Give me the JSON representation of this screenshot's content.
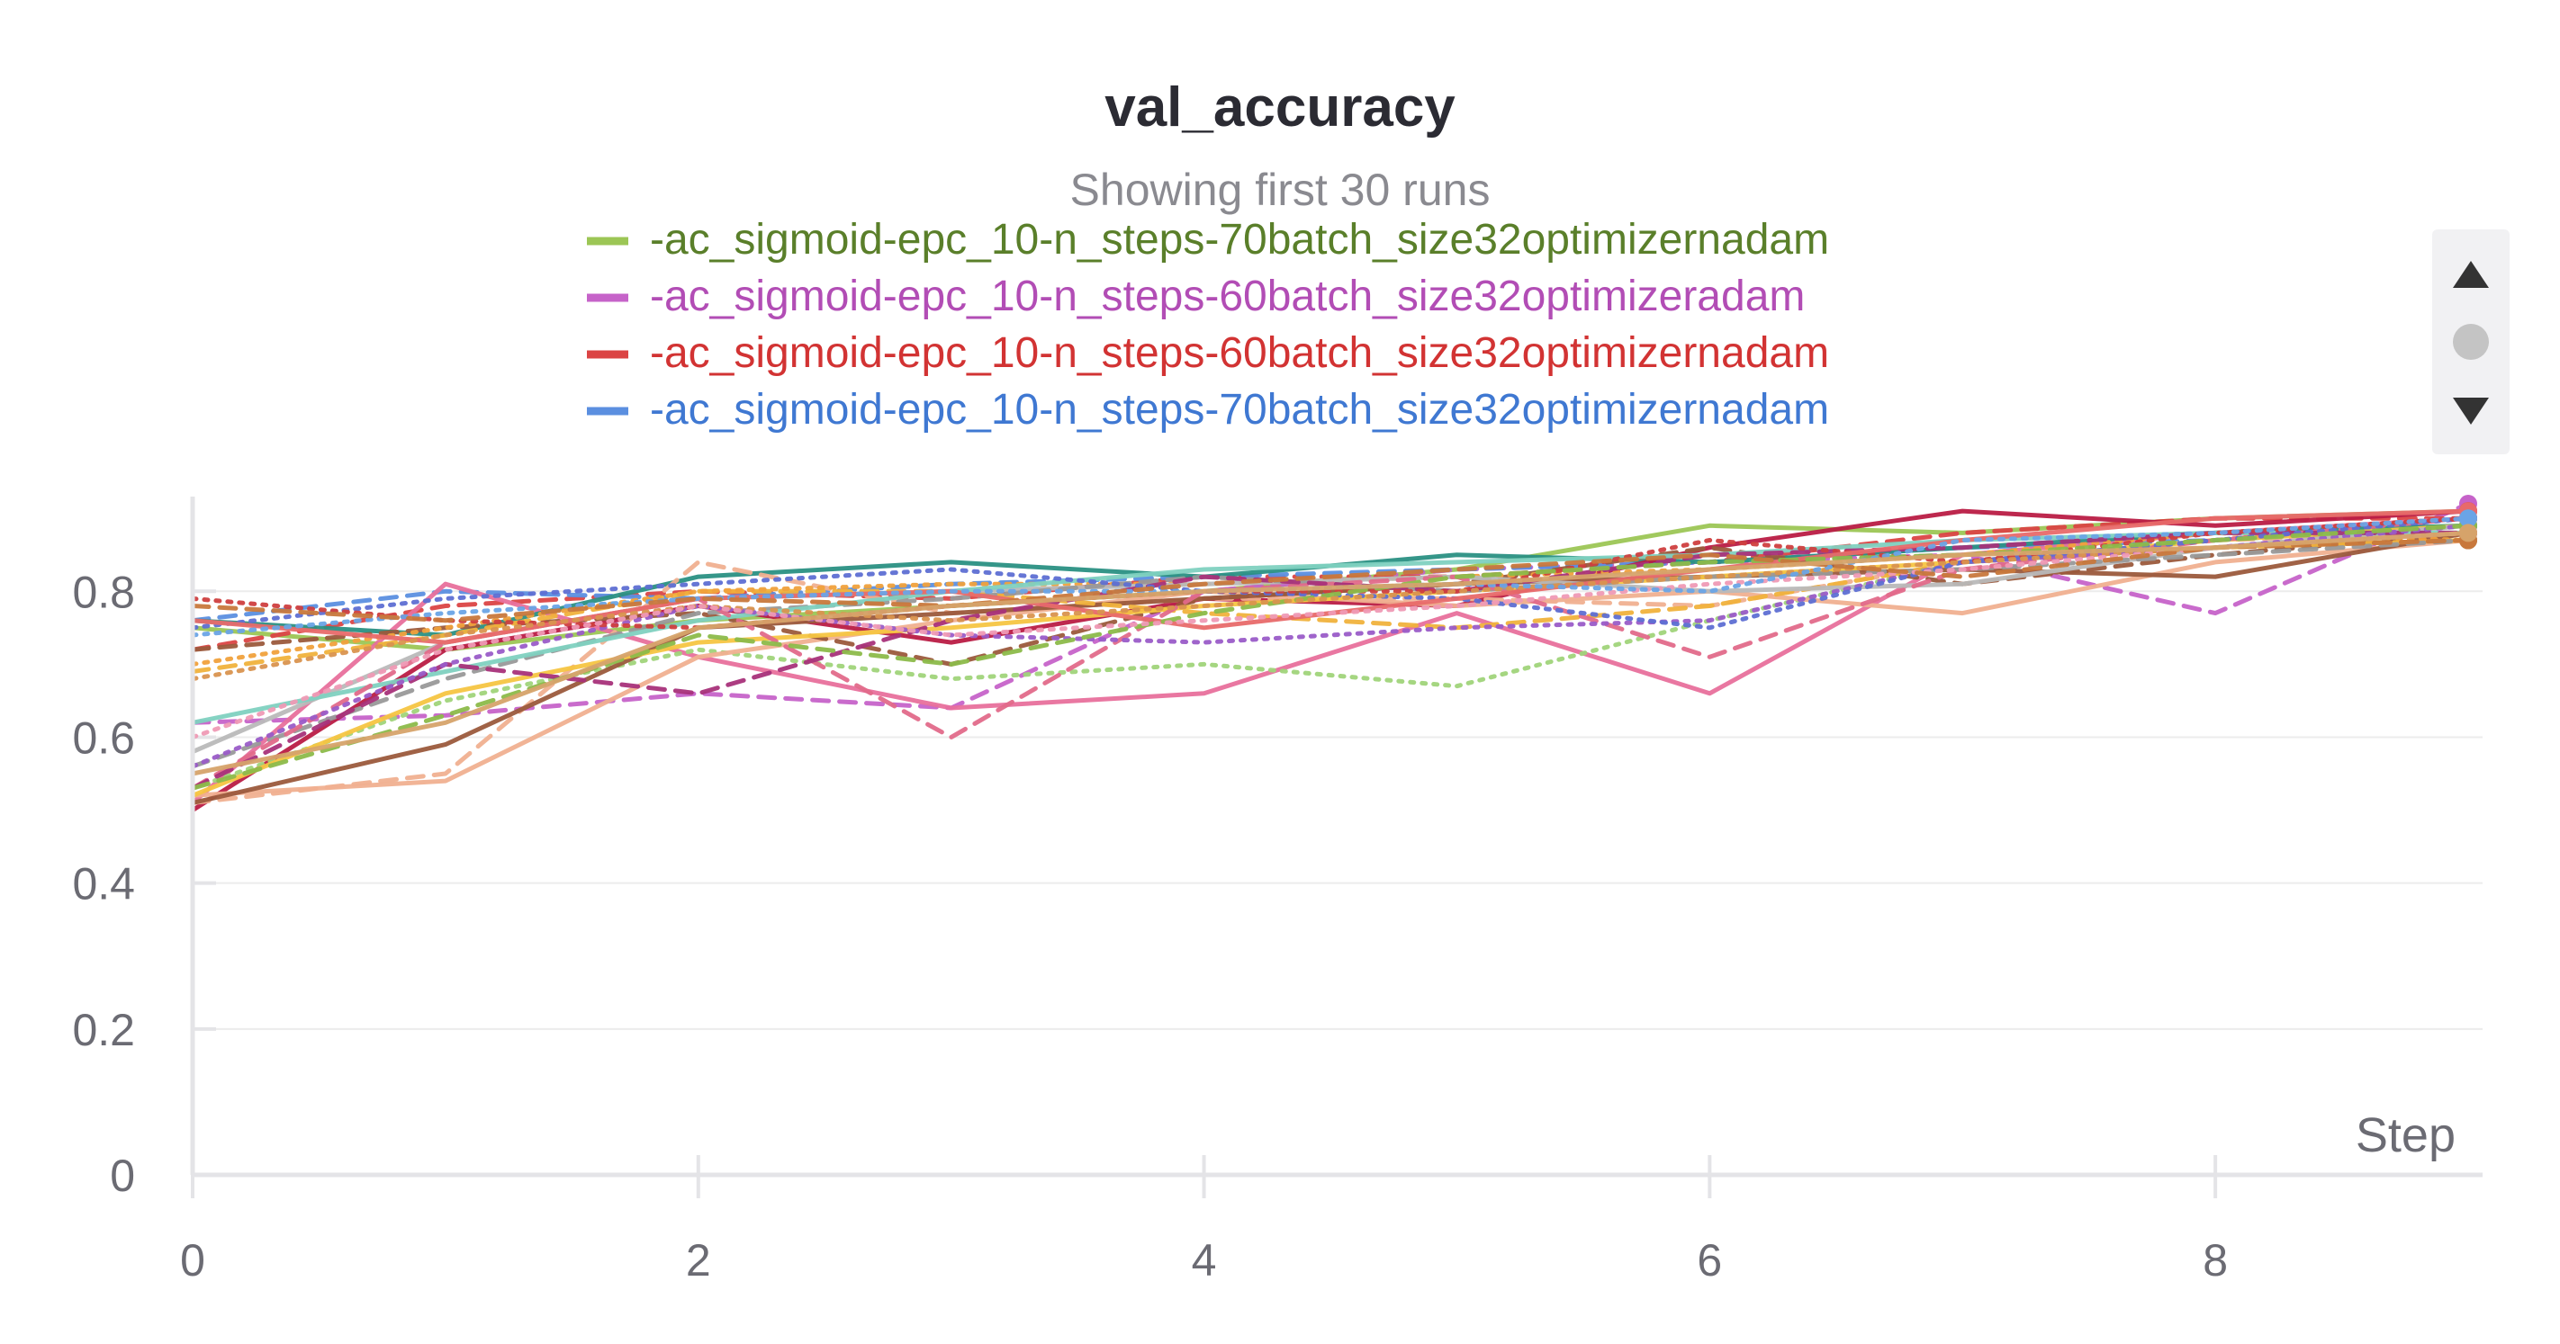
{
  "chart_data": {
    "type": "line",
    "title": "val_accuracy",
    "subtitle": "Showing first 30 runs",
    "xlabel": "Step",
    "ylabel": "",
    "xlim": [
      0,
      9
    ],
    "ylim": [
      0,
      0.92
    ],
    "x_ticks": [
      "0",
      "2",
      "4",
      "6",
      "8"
    ],
    "y_ticks": [
      "0",
      "0.2",
      "0.4",
      "0.6",
      "0.8"
    ],
    "x": [
      0,
      1,
      2,
      3,
      4,
      5,
      6,
      7,
      8,
      9
    ],
    "legend": [
      {
        "label": "-ac_sigmoid-epc_10-n_steps-70batch_size32optimizernadam",
        "swatch": "#9cc655",
        "text_color": "#5a7f2a"
      },
      {
        "label": "-ac_sigmoid-epc_10-n_steps-60batch_size32optimizeradam",
        "swatch": "#c663c9",
        "text_color": "#b24db5"
      },
      {
        "label": "-ac_sigmoid-epc_10-n_steps-60batch_size32optimizernadam",
        "swatch": "#db4444",
        "text_color": "#d23333"
      },
      {
        "label": "-ac_sigmoid-epc_10-n_steps-70batch_size32optimizernadam",
        "swatch": "#5b8fe0",
        "text_color": "#3f78d2"
      }
    ],
    "series": [
      {
        "color": "#9cc655",
        "dash": "solid",
        "values": [
          0.75,
          0.72,
          0.76,
          0.78,
          0.8,
          0.83,
          0.89,
          0.88,
          0.9,
          0.91
        ]
      },
      {
        "color": "#c663c9",
        "dash": "dashed",
        "values": [
          0.62,
          0.63,
          0.66,
          0.64,
          0.8,
          0.83,
          0.84,
          0.85,
          0.77,
          0.92
        ]
      },
      {
        "color": "#db4444",
        "dash": "dashed",
        "values": [
          0.72,
          0.78,
          0.8,
          0.79,
          0.82,
          0.82,
          0.84,
          0.88,
          0.9,
          0.9
        ]
      },
      {
        "color": "#5b8fe0",
        "dash": "dashed",
        "values": [
          0.76,
          0.8,
          0.79,
          0.81,
          0.82,
          0.83,
          0.84,
          0.86,
          0.87,
          0.89
        ]
      },
      {
        "color": "#e8709c",
        "dash": "solid",
        "values": [
          0.51,
          0.81,
          0.71,
          0.64,
          0.66,
          0.77,
          0.66,
          0.85,
          0.88,
          0.9
        ]
      },
      {
        "color": "#2a9083",
        "dash": "solid",
        "values": [
          0.76,
          0.74,
          0.82,
          0.84,
          0.82,
          0.85,
          0.84,
          0.86,
          0.88,
          0.89
        ]
      },
      {
        "color": "#b91c44",
        "dash": "solid",
        "values": [
          0.5,
          0.72,
          0.78,
          0.73,
          0.79,
          0.78,
          0.86,
          0.91,
          0.89,
          0.91
        ]
      },
      {
        "color": "#a0d47a",
        "dash": "dotted",
        "values": [
          0.53,
          0.65,
          0.72,
          0.68,
          0.7,
          0.67,
          0.76,
          0.84,
          0.86,
          0.88
        ]
      },
      {
        "color": "#f0b090",
        "dash": "solid",
        "values": [
          0.52,
          0.54,
          0.71,
          0.76,
          0.8,
          0.78,
          0.8,
          0.77,
          0.84,
          0.87
        ]
      },
      {
        "color": "#f0b090",
        "dash": "dashed",
        "values": [
          0.51,
          0.55,
          0.84,
          0.77,
          0.79,
          0.79,
          0.78,
          0.84,
          0.87,
          0.88
        ]
      },
      {
        "color": "#9b5a3c",
        "dash": "solid",
        "values": [
          0.51,
          0.59,
          0.75,
          0.77,
          0.79,
          0.81,
          0.82,
          0.83,
          0.82,
          0.88
        ]
      },
      {
        "color": "#9b5a3c",
        "dash": "dashed",
        "values": [
          0.72,
          0.75,
          0.77,
          0.7,
          0.79,
          0.81,
          0.86,
          0.81,
          0.85,
          0.88
        ]
      },
      {
        "color": "#f0b23c",
        "dash": "dashed",
        "values": [
          0.69,
          0.74,
          0.8,
          0.8,
          0.77,
          0.75,
          0.78,
          0.84,
          0.86,
          0.87
        ]
      },
      {
        "color": "#f5c542",
        "dash": "solid",
        "values": [
          0.52,
          0.66,
          0.73,
          0.75,
          0.78,
          0.8,
          0.82,
          0.84,
          0.87,
          0.89
        ]
      },
      {
        "color": "#f0a13c",
        "dash": "dotted",
        "values": [
          0.7,
          0.75,
          0.8,
          0.81,
          0.81,
          0.82,
          0.83,
          0.85,
          0.88,
          0.87
        ]
      },
      {
        "color": "#b9b9b9",
        "dash": "solid",
        "values": [
          0.58,
          0.73,
          0.79,
          0.8,
          0.81,
          0.82,
          0.8,
          0.81,
          0.86,
          0.89
        ]
      },
      {
        "color": "#999999",
        "dash": "dashed",
        "values": [
          0.56,
          0.68,
          0.77,
          0.79,
          0.82,
          0.8,
          0.82,
          0.83,
          0.85,
          0.87
        ]
      },
      {
        "color": "#7fd1c0",
        "dash": "solid",
        "values": [
          0.62,
          0.69,
          0.76,
          0.8,
          0.83,
          0.84,
          0.85,
          0.87,
          0.88,
          0.88
        ]
      },
      {
        "color": "#e16a8a",
        "dash": "dashed",
        "values": [
          0.53,
          0.73,
          0.79,
          0.6,
          0.8,
          0.82,
          0.71,
          0.83,
          0.87,
          0.9
        ]
      },
      {
        "color": "#a8327a",
        "dash": "dashed",
        "values": [
          0.53,
          0.7,
          0.66,
          0.76,
          0.82,
          0.8,
          0.85,
          0.86,
          0.88,
          0.88
        ]
      },
      {
        "color": "#9a5cc8",
        "dash": "dotted",
        "values": [
          0.56,
          0.7,
          0.78,
          0.74,
          0.73,
          0.75,
          0.76,
          0.84,
          0.86,
          0.89
        ]
      },
      {
        "color": "#5e6fd3",
        "dash": "dotted",
        "values": [
          0.75,
          0.79,
          0.81,
          0.83,
          0.8,
          0.79,
          0.75,
          0.84,
          0.87,
          0.9
        ]
      },
      {
        "color": "#cf3f3f",
        "dash": "dotted",
        "values": [
          0.79,
          0.76,
          0.75,
          0.78,
          0.8,
          0.8,
          0.87,
          0.84,
          0.88,
          0.9
        ]
      },
      {
        "color": "#e86a6a",
        "dash": "solid",
        "values": [
          0.76,
          0.73,
          0.79,
          0.8,
          0.75,
          0.79,
          0.83,
          0.87,
          0.9,
          0.91
        ]
      },
      {
        "color": "#8cba4a",
        "dash": "dashed",
        "values": [
          0.53,
          0.63,
          0.74,
          0.7,
          0.77,
          0.82,
          0.84,
          0.85,
          0.87,
          0.89
        ]
      },
      {
        "color": "#d9934f",
        "dash": "dotted",
        "values": [
          0.68,
          0.74,
          0.78,
          0.76,
          0.78,
          0.8,
          0.82,
          0.84,
          0.86,
          0.88
        ]
      },
      {
        "color": "#ef9ab5",
        "dash": "dotted",
        "values": [
          0.6,
          0.72,
          0.78,
          0.74,
          0.76,
          0.78,
          0.81,
          0.83,
          0.86,
          0.88
        ]
      },
      {
        "color": "#6aa4e6",
        "dash": "dotted",
        "values": [
          0.74,
          0.77,
          0.79,
          0.8,
          0.8,
          0.81,
          0.8,
          0.87,
          0.88,
          0.9
        ]
      },
      {
        "color": "#c8783c",
        "dash": "dashed",
        "values": [
          0.78,
          0.76,
          0.79,
          0.78,
          0.81,
          0.83,
          0.85,
          0.82,
          0.86,
          0.87
        ]
      },
      {
        "color": "#d6a36a",
        "dash": "solid",
        "values": [
          0.55,
          0.62,
          0.75,
          0.78,
          0.8,
          0.81,
          0.83,
          0.85,
          0.86,
          0.88
        ]
      }
    ]
  },
  "scroll_controls": {
    "up_icon": "triangle-up-icon",
    "thumb": "scroll-thumb",
    "down_icon": "triangle-down-icon"
  }
}
